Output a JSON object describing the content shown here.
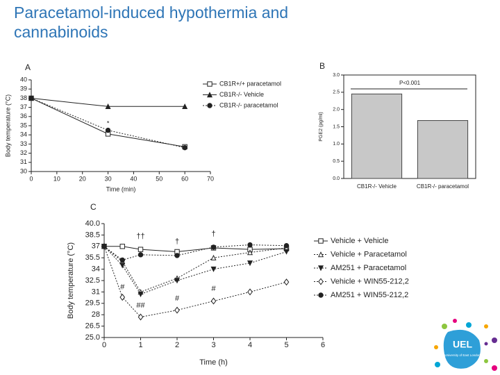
{
  "title_line1": "Paracetamol-induced hypothermia and",
  "title_line2": "cannabinoids",
  "logo": {
    "text": "UEL",
    "subtitle": "University of East London"
  },
  "chart_data": [
    {
      "type": "line",
      "panel": "A",
      "xlabel": "Time (min)",
      "ylabel": "Body temperature (°C)",
      "x": [
        0,
        30,
        60
      ],
      "xlim": [
        0,
        70
      ],
      "xticks": [
        0,
        10,
        20,
        30,
        40,
        50,
        60,
        70
      ],
      "ylim": [
        30,
        40
      ],
      "yticks": [
        30,
        31,
        32,
        33,
        34,
        35,
        36,
        37,
        38,
        39,
        40
      ],
      "series": [
        {
          "name": "CB1R+/+ paracetamol",
          "color": "#222222",
          "marker": "square-open",
          "linestyle": "solid",
          "values": [
            38,
            34.1,
            32.7
          ]
        },
        {
          "name": "CB1R-/- Vehicle",
          "color": "#222222",
          "marker": "triangle-filled",
          "linestyle": "solid",
          "values": [
            38,
            37.1,
            37.1
          ]
        },
        {
          "name": "CB1R-/- paracetamol",
          "color": "#222222",
          "marker": "circle-filled",
          "linestyle": "dotted",
          "values": [
            38,
            34.5,
            32.6
          ]
        }
      ],
      "annotations": [
        {
          "text": "*",
          "x": 30,
          "y": 35.2
        }
      ]
    },
    {
      "type": "bar",
      "panel": "B",
      "ylabel": "PGE2 (pg/ml)",
      "annotation": "P<0.001",
      "categories": [
        "CB1R-/- Vehicle",
        "CB1R-/- paracetamol"
      ],
      "values": [
        2.45,
        1.68
      ],
      "color": "#c8c8c8",
      "ylim": [
        0,
        3
      ],
      "yticks": [
        {
          "value": 0,
          "label": "0.0"
        },
        0.5,
        {
          "value": 1,
          "label": "1.0"
        },
        1.5,
        {
          "value": 2,
          "label": "2.0"
        },
        2.5,
        {
          "value": 3,
          "label": "3.0"
        }
      ]
    },
    {
      "type": "line",
      "panel": "C",
      "xlabel": "Time (h)",
      "ylabel": "Body temperature (°C)",
      "x": [
        0,
        0.5,
        1,
        2,
        3,
        4,
        5
      ],
      "xlim": [
        0,
        6
      ],
      "xticks": [
        0,
        1,
        2,
        3,
        4,
        5,
        6
      ],
      "ylim": [
        25,
        40
      ],
      "yticks": [
        {
          "value": 25,
          "label": "25.0"
        },
        26.5,
        28,
        29.5,
        31,
        32.5,
        34,
        35.5,
        37,
        38.5,
        {
          "value": 40,
          "label": "40.0"
        }
      ],
      "series": [
        {
          "name": "Vehicle + Vehicle",
          "color": "#222222",
          "marker": "square-open",
          "linestyle": "solid",
          "values": [
            37,
            37,
            36.6,
            36.3,
            36.8,
            36.6,
            36.7
          ]
        },
        {
          "name": "Vehicle + Paracetamol",
          "color": "#222222",
          "marker": "triangle-open",
          "linestyle": "dotted",
          "values": [
            37,
            35,
            31,
            32.8,
            35.5,
            36.2,
            36.8
          ]
        },
        {
          "name": "AM251 + Paracetamol",
          "color": "#222222",
          "marker": "triangle-down-filled",
          "linestyle": "dotted",
          "values": [
            37,
            34.5,
            30.7,
            32.5,
            34,
            34.8,
            36.3
          ]
        },
        {
          "name": "Vehicle + WIN55-212,2",
          "color": "#222222",
          "marker": "diamond-open",
          "linestyle": "dotted",
          "values": [
            37,
            30.3,
            27.7,
            28.6,
            29.8,
            31,
            32.3
          ]
        },
        {
          "name": "AM251 + WIN55-212,2",
          "color": "#222222",
          "marker": "circle-filled",
          "linestyle": "dotted",
          "values": [
            37,
            35.2,
            35.9,
            35.8,
            36.9,
            37.2,
            37.1
          ]
        }
      ],
      "annotations": [
        {
          "text": "††",
          "x": 1,
          "y": 38.3
        },
        {
          "text": "†",
          "x": 2,
          "y": 37.6
        },
        {
          "text": "†",
          "x": 3,
          "y": 38.6
        },
        {
          "text": "#",
          "x": 0.5,
          "y": 31.6
        },
        {
          "text": "##",
          "x": 1,
          "y": 29.2
        },
        {
          "text": "#",
          "x": 2,
          "y": 30.1
        },
        {
          "text": "#",
          "x": 3,
          "y": 31.4
        }
      ]
    }
  ]
}
